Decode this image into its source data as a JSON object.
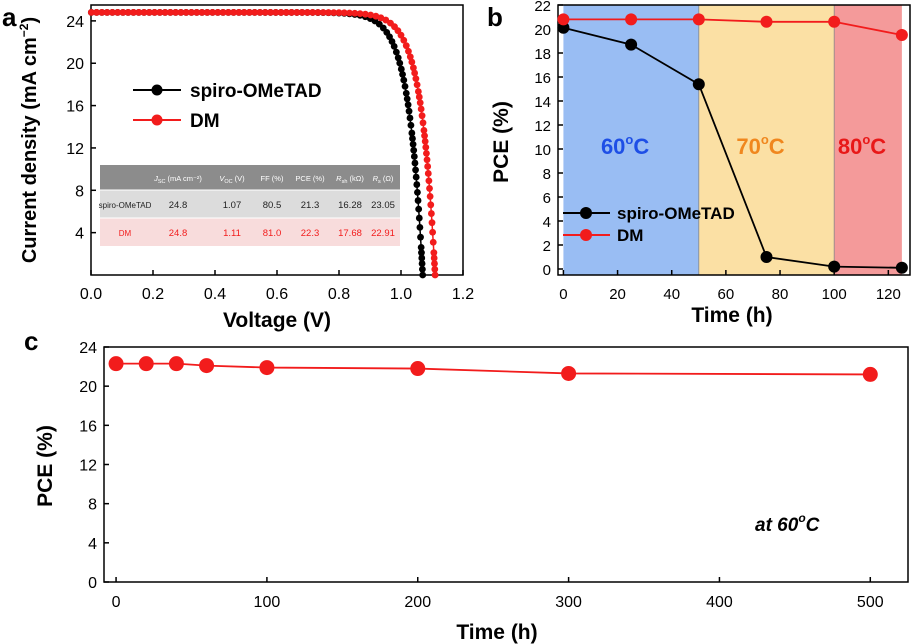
{
  "panel_labels": {
    "a": "a",
    "b": "b",
    "c": "c"
  },
  "colors": {
    "black": "#000000",
    "red": "#f21c1c",
    "blue_region": "#99bdf3",
    "orange_region": "#fbe0a4",
    "red_region": "#f49a9a",
    "blue_text": "#1e4fe6",
    "orange_text": "#f0871e",
    "red_text": "#e81818",
    "table_head": "#8c8c8c",
    "table_row1": "#dcdcdc",
    "table_row2": "#f8dcdc"
  },
  "chart_data": [
    {
      "id": "a",
      "type": "line",
      "xlabel": "Voltage (V)",
      "ylabel_main": "Current density (mA cm",
      "ylabel_sup": "−2",
      "ylabel_close": ")",
      "xlim": [
        0.0,
        1.2
      ],
      "ylim": [
        0,
        25.5
      ],
      "xticks": [
        "0.0",
        "0.2",
        "0.4",
        "0.6",
        "0.8",
        "1.0",
        "1.2"
      ],
      "xtick_values": [
        0.0,
        0.2,
        0.4,
        0.6,
        0.8,
        1.0,
        1.2
      ],
      "yticks": [
        "4",
        "8",
        "12",
        "16",
        "20",
        "24"
      ],
      "ytick_values": [
        4,
        8,
        12,
        16,
        20,
        24
      ],
      "legend": [
        "spiro-OMeTAD",
        "DM"
      ],
      "series": [
        {
          "name": "spiro-OMeTAD",
          "color": "#000000",
          "jsc": 24.8,
          "voc": 1.07
        },
        {
          "name": "DM",
          "color": "#f21c1c",
          "jsc": 24.8,
          "voc": 1.11
        }
      ],
      "table": {
        "headers": [
          "",
          "J",
          "V",
          "FF (%)",
          "PCE (%)",
          "R",
          "R"
        ],
        "header_subs": [
          "",
          "SC",
          "OC",
          "",
          "",
          "sh",
          "s"
        ],
        "header_units": [
          "",
          " (mA cm⁻²)",
          " (V)",
          "",
          "",
          " (kΩ)",
          " (Ω)"
        ],
        "rows": [
          [
            "spiro-OMeTAD",
            "24.8",
            "1.07",
            "80.5",
            "21.3",
            "16.28",
            "23.05"
          ],
          [
            "DM",
            "24.8",
            "1.11",
            "81.0",
            "22.3",
            "17.68",
            "22.91"
          ]
        ]
      }
    },
    {
      "id": "b",
      "type": "line",
      "xlabel": "Time (h)",
      "ylabel": "PCE (%)",
      "xlim": [
        -2,
        128
      ],
      "ylim": [
        -0.5,
        22
      ],
      "xticks": [
        "0",
        "20",
        "40",
        "60",
        "80",
        "100",
        "120"
      ],
      "xtick_values": [
        0,
        20,
        40,
        60,
        80,
        100,
        120
      ],
      "yticks": [
        "0",
        "2",
        "4",
        "6",
        "8",
        "10",
        "12",
        "14",
        "16",
        "18",
        "20",
        "22"
      ],
      "ytick_values": [
        0,
        2,
        4,
        6,
        8,
        10,
        12,
        14,
        16,
        18,
        20,
        22
      ],
      "regions": [
        {
          "label": "60",
          "deg": "o",
          "unit": "C",
          "from": 0,
          "to": 50,
          "fill": "#99bdf3",
          "text_color": "#1e4fe6"
        },
        {
          "label": "70",
          "deg": "o",
          "unit": "C",
          "from": 50,
          "to": 100,
          "fill": "#fbe0a4",
          "text_color": "#f0871e"
        },
        {
          "label": "80",
          "deg": "o",
          "unit": "C",
          "from": 100,
          "to": 125,
          "fill": "#f49a9a",
          "text_color": "#e81818"
        }
      ],
      "legend": [
        "spiro-OMeTAD",
        "DM"
      ],
      "x": [
        0,
        25,
        50,
        75,
        100,
        125
      ],
      "series": [
        {
          "name": "spiro-OMeTAD",
          "color": "#000000",
          "values": [
            20.1,
            18.7,
            15.4,
            1.0,
            0.2,
            0.1
          ]
        },
        {
          "name": "DM",
          "color": "#f21c1c",
          "values": [
            20.8,
            20.8,
            20.8,
            20.6,
            20.6,
            19.5
          ]
        }
      ]
    },
    {
      "id": "c",
      "type": "line",
      "xlabel": "Time (h)",
      "ylabel": "PCE (%)",
      "xlim": [
        -8,
        525
      ],
      "ylim": [
        0,
        24
      ],
      "xticks": [
        "0",
        "100",
        "200",
        "300",
        "400",
        "500"
      ],
      "xtick_values": [
        0,
        100,
        200,
        300,
        400,
        500
      ],
      "yticks": [
        "0",
        "4",
        "8",
        "12",
        "16",
        "20",
        "24"
      ],
      "ytick_values": [
        0,
        4,
        8,
        12,
        16,
        20,
        24
      ],
      "annotation": {
        "prefix": "at 60",
        "deg": "o",
        "unit": "C"
      },
      "x": [
        0,
        20,
        40,
        60,
        100,
        200,
        300,
        500
      ],
      "series": [
        {
          "name": "",
          "color": "#f21c1c",
          "values": [
            22.3,
            22.3,
            22.3,
            22.1,
            21.9,
            21.8,
            21.3,
            21.2
          ]
        }
      ]
    }
  ]
}
